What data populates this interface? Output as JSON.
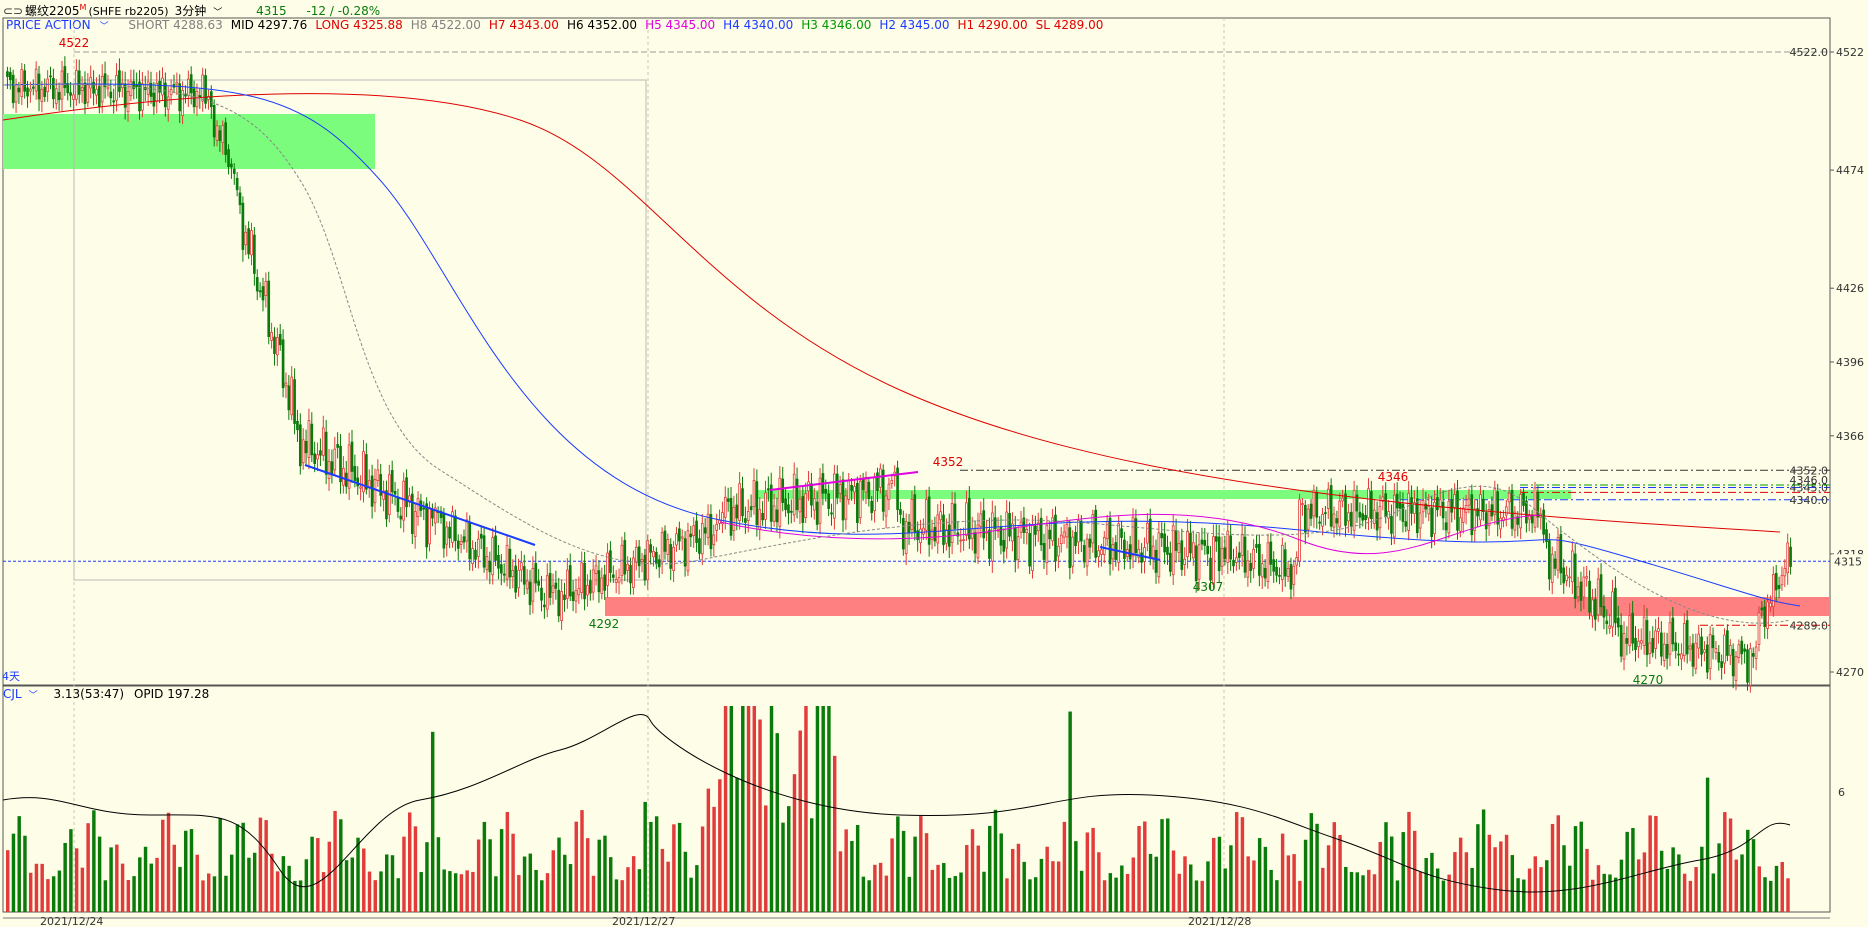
{
  "window": {
    "title": "螺纹2205",
    "title_sup": "M",
    "symbol": "(SHFE rb2205)",
    "period": "3分钟",
    "price": "4315",
    "change": "-12 / -0.28%"
  },
  "header": {
    "indicator": "PRICE ACTION",
    "items": [
      {
        "text": "SHORT 4288.63",
        "color": "#808080"
      },
      {
        "text": "MID 4297.76",
        "color": "#000000"
      },
      {
        "text": "LONG 4325.88",
        "color": "#e00000"
      },
      {
        "text": "H8 4522.00",
        "color": "#808080"
      },
      {
        "text": "H7 4343.00",
        "color": "#e00000"
      },
      {
        "text": "H6 4352.00",
        "color": "#000000"
      },
      {
        "text": "H5 4345.00",
        "color": "#e000e0"
      },
      {
        "text": "H4 4340.00",
        "color": "#1b3bff"
      },
      {
        "text": "H3 4346.00",
        "color": "#009900"
      },
      {
        "text": "H2 4345.00",
        "color": "#1b3bff"
      },
      {
        "text": "H1 4290.00",
        "color": "#e00000"
      },
      {
        "text": "SL 4289.00",
        "color": "#e00000"
      }
    ]
  },
  "price_axis": {
    "ticks": [
      "4522",
      "4474",
      "4426",
      "4396",
      "4366",
      "4318",
      "4270"
    ],
    "current": "4315",
    "right_labels": [
      "4522.0",
      "4352.0",
      "4345.0",
      "4346.0",
      "4340.0",
      "4289.0"
    ]
  },
  "price_points": {
    "high1": "4522",
    "low1": "4292",
    "high2": "4352",
    "low2": "4307",
    "high3": "4346",
    "low3": "4270"
  },
  "day_label": "4天",
  "volume": {
    "indicator": "CJL",
    "value": "3.13(53:47)",
    "opid": "OPID 197.28",
    "axis_tick": "6"
  },
  "dates": [
    "2021/12/24",
    "2021/12/27",
    "2021/12/28"
  ],
  "colors": {
    "bg": "#fefee8",
    "up": "#e23b3b",
    "down": "#0a7a0a",
    "ma_long": "#e00000",
    "ma_mid": "#1b3bff",
    "ma_short": "#e000e0",
    "zone_green": "#7cfc7c",
    "zone_red": "#ff8080"
  }
}
